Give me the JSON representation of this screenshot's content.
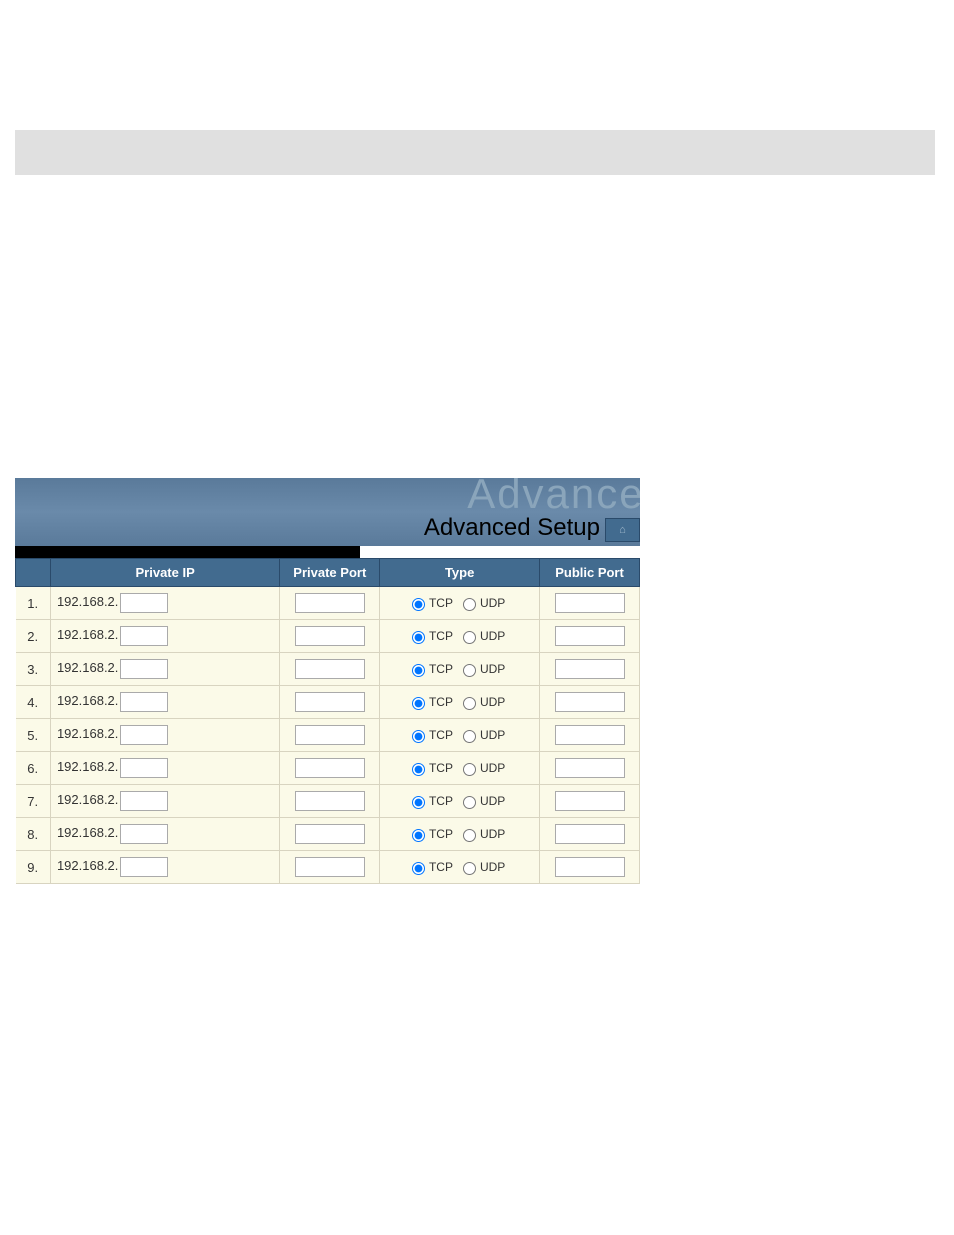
{
  "header": {
    "watermark": "Advanced",
    "title": "Advanced Setup",
    "home_icon": "⌂"
  },
  "table": {
    "columns": {
      "num": "",
      "private_ip": "Private IP",
      "private_port": "Private Port",
      "type": "Type",
      "public_port": "Public Port"
    },
    "ip_prefix": "192.168.2.",
    "type_options": {
      "tcp": "TCP",
      "udp": "UDP"
    },
    "rows": [
      {
        "num": "1.",
        "ip": "",
        "pport": "",
        "type": "tcp",
        "pubport": ""
      },
      {
        "num": "2.",
        "ip": "",
        "pport": "",
        "type": "tcp",
        "pubport": ""
      },
      {
        "num": "3.",
        "ip": "",
        "pport": "",
        "type": "tcp",
        "pubport": ""
      },
      {
        "num": "4.",
        "ip": "",
        "pport": "",
        "type": "tcp",
        "pubport": ""
      },
      {
        "num": "5.",
        "ip": "",
        "pport": "",
        "type": "tcp",
        "pubport": ""
      },
      {
        "num": "6.",
        "ip": "",
        "pport": "",
        "type": "tcp",
        "pubport": ""
      },
      {
        "num": "7.",
        "ip": "",
        "pport": "",
        "type": "tcp",
        "pubport": ""
      },
      {
        "num": "8.",
        "ip": "",
        "pport": "",
        "type": "tcp",
        "pubport": ""
      },
      {
        "num": "9.",
        "ip": "",
        "pport": "",
        "type": "tcp",
        "pubport": ""
      }
    ]
  },
  "colors": {
    "header_bg": "#5a7a9a",
    "header_th_bg": "#426b8f",
    "row_bg": "#fbfae8",
    "border": "#d8d4c0"
  }
}
